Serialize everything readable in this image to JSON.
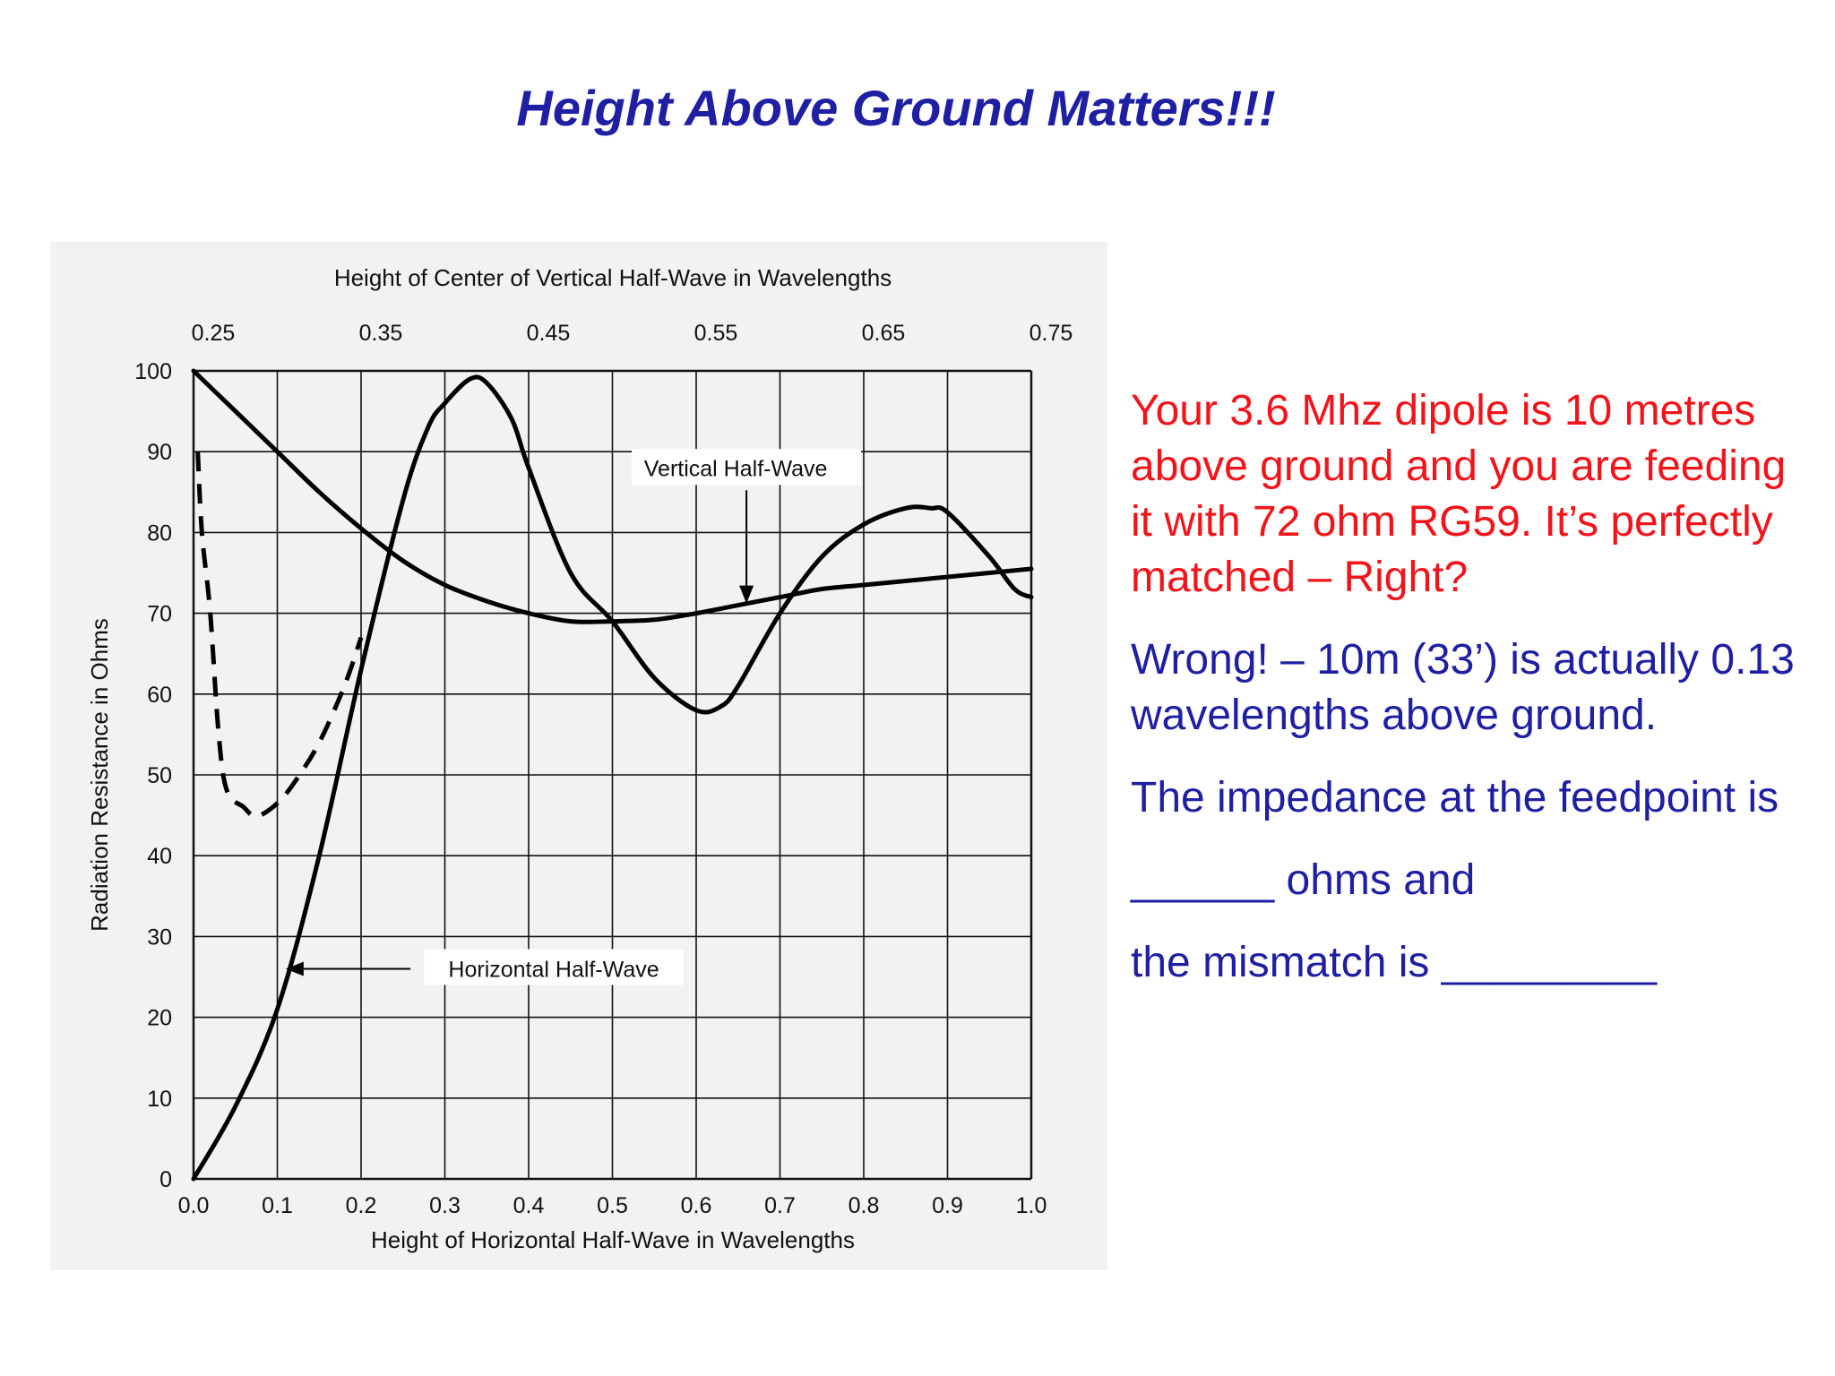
{
  "slide": {
    "title": "Height Above Ground Matters!!!"
  },
  "chart_data": {
    "type": "line",
    "top_axis_title": "Height of Center of Vertical Half-Wave in Wavelengths",
    "top_ticks": [
      "0.25",
      "0.35",
      "0.45",
      "0.55",
      "0.65",
      "0.75"
    ],
    "xlabel": "Height of Horizontal Half-Wave in Wavelengths",
    "x_ticks": [
      "0.0",
      "0.1",
      "0.2",
      "0.3",
      "0.4",
      "0.5",
      "0.6",
      "0.7",
      "0.8",
      "0.9",
      "1.0"
    ],
    "ylabel": "Radiation Resistance in Ohms",
    "y_ticks": [
      "0",
      "10",
      "20",
      "30",
      "40",
      "50",
      "60",
      "70",
      "80",
      "90",
      "100"
    ],
    "xlim": [
      0,
      1.0
    ],
    "ylim": [
      0,
      100
    ],
    "grid": true,
    "series": [
      {
        "name": "Horizontal Half-Wave",
        "style": "solid",
        "x": [
          0,
          0.05,
          0.1,
          0.15,
          0.2,
          0.25,
          0.28,
          0.3,
          0.33,
          0.35,
          0.38,
          0.4,
          0.45,
          0.5,
          0.55,
          0.6,
          0.63,
          0.65,
          0.7,
          0.75,
          0.8,
          0.85,
          0.88,
          0.9,
          0.95,
          0.98,
          1.0
        ],
        "y": [
          0,
          9,
          21,
          40,
          63,
          84,
          93,
          96,
          99,
          98.5,
          94,
          88,
          75,
          69,
          62,
          58,
          58.5,
          61,
          70,
          77,
          81,
          83,
          83,
          82.5,
          77,
          73,
          72
        ]
      },
      {
        "name": "Horizontal Half-Wave (dashed)",
        "style": "dashed",
        "x": [
          0.005,
          0.01,
          0.02,
          0.03,
          0.04,
          0.06,
          0.07,
          0.08,
          0.1,
          0.12,
          0.15,
          0.18,
          0.2
        ],
        "y": [
          90,
          80,
          70,
          55,
          48,
          46,
          45,
          45,
          46.5,
          49,
          54,
          61,
          67
        ]
      },
      {
        "name": "Vertical Half-Wave",
        "style": "solid",
        "x": [
          0,
          0.05,
          0.1,
          0.15,
          0.2,
          0.25,
          0.3,
          0.35,
          0.4,
          0.45,
          0.5,
          0.55,
          0.6,
          0.65,
          0.7,
          0.75,
          0.8,
          0.85,
          0.9,
          0.95,
          1.0
        ],
        "y": [
          100,
          95,
          90,
          85,
          80.5,
          76.5,
          73.5,
          71.5,
          70,
          69,
          69,
          69.2,
          70,
          71,
          72,
          73,
          73.5,
          74,
          74.5,
          75,
          75.5
        ]
      }
    ],
    "annotations": [
      {
        "text": "Vertical Half-Wave",
        "x": 0.66,
        "y": 71,
        "text_x": 0.66,
        "text_y": 87
      },
      {
        "text": "Horizontal Half-Wave",
        "x": 0.11,
        "y": 26,
        "text_x": 0.43,
        "text_y": 26
      }
    ]
  },
  "notes": {
    "para1": "Your 3.6 Mhz dipole is 10 metres above ground and you are feeding it with 72 ohm RG59. It’s perfectly matched – Right?",
    "para2": "Wrong! – 10m (33’) is actually 0.13 wavelengths above ground.",
    "para3": "The impedance at the feedpoint is",
    "para4": "______ ohms and",
    "para5": "the mismatch is _________"
  },
  "colors": {
    "title": "#1f1fa3",
    "red_text": "#f2141b",
    "blue_text": "#1f1fa3",
    "curve": "#000000",
    "panel": "#f2f2f2"
  }
}
